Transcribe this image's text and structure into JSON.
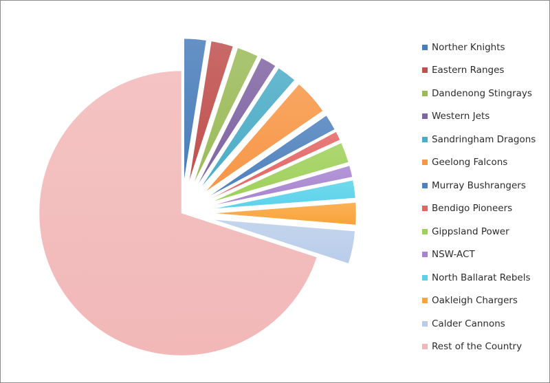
{
  "chart_data": {
    "type": "pie",
    "exploded": true,
    "legend_position": "right",
    "categories": [
      "Norther Knights",
      "Eastern Ranges",
      "Dandenong Stingrays",
      "Western Jets",
      "Sandringham Dragons",
      "Geelong Falcons",
      "Murray Bushrangers",
      "Bendigo Pioneers",
      "Gippsland Power",
      "NSW-ACT",
      "North Ballarat Rebels",
      "Oakleigh Chargers",
      "Calder Cannons",
      "Rest of the Country"
    ],
    "values": [
      2.5,
      2.5,
      2.4,
      1.8,
      2.2,
      4.0,
      1.8,
      1.0,
      2.3,
      1.3,
      2.0,
      2.5,
      3.7,
      70.0
    ],
    "colors": [
      "#4a7ebb",
      "#c0504d",
      "#9bbb59",
      "#8064a2",
      "#4bacc6",
      "#f79646",
      "#4f81bd",
      "#e46464",
      "#9fd05a",
      "#a784d0",
      "#5ad2ea",
      "#f9a33a",
      "#b9cdea",
      "#f2b8b8"
    ]
  }
}
